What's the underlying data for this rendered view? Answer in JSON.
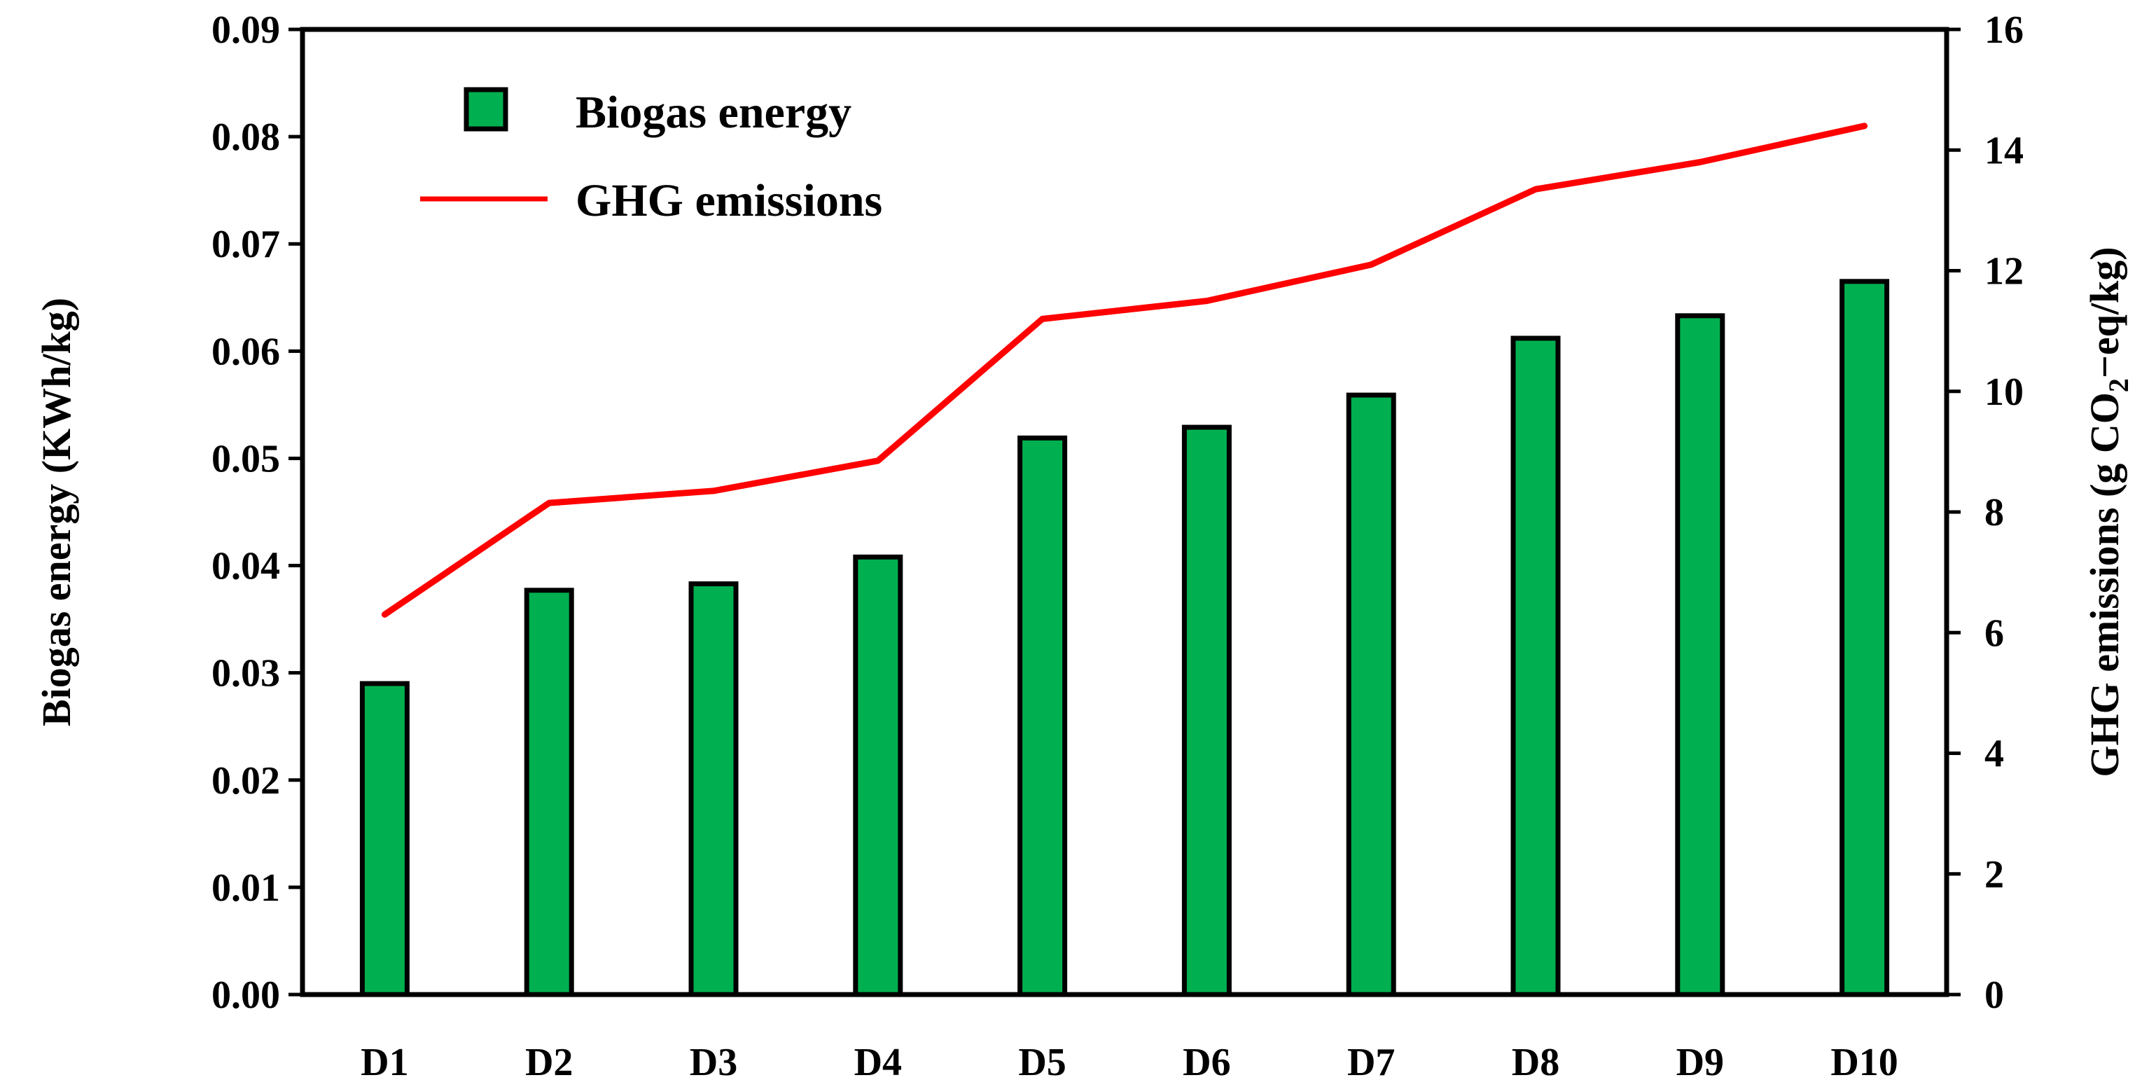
{
  "chart_data": {
    "type": "bar",
    "categories": [
      "D1",
      "D2",
      "D3",
      "D4",
      "D5",
      "D6",
      "D7",
      "D8",
      "D9",
      "D10"
    ],
    "series": [
      {
        "name": "Biogas energy",
        "kind": "bar",
        "axis": "left",
        "color": "#00b050",
        "values": [
          0.029,
          0.0377,
          0.0383,
          0.0408,
          0.0519,
          0.0529,
          0.0559,
          0.0612,
          0.0633,
          0.0665
        ]
      },
      {
        "name": "GHG emissions",
        "kind": "line",
        "axis": "right",
        "color": "#ff0000",
        "values": [
          6.3,
          8.15,
          8.35,
          8.85,
          11.2,
          11.5,
          12.1,
          13.35,
          13.8,
          14.4
        ]
      }
    ],
    "y_left": {
      "label": "Biogas energy (KWh/kg)",
      "ylim": [
        0,
        0.09
      ],
      "ticks": [
        "0.00",
        "0.01",
        "0.02",
        "0.03",
        "0.04",
        "0.05",
        "0.06",
        "0.07",
        "0.08",
        "0.09"
      ]
    },
    "y_right": {
      "label_prefix": "GHG emissions (g CO",
      "label_subscript": "2",
      "label_suffix": "−eq/kg)",
      "ylim": [
        0,
        16
      ],
      "ticks": [
        "0",
        "2",
        "4",
        "6",
        "8",
        "10",
        "12",
        "14",
        "16"
      ]
    },
    "legend": {
      "position": "top-left",
      "entries": [
        "Biogas energy",
        "GHG emissions"
      ]
    },
    "grid": false,
    "title": "",
    "xlabel": ""
  }
}
